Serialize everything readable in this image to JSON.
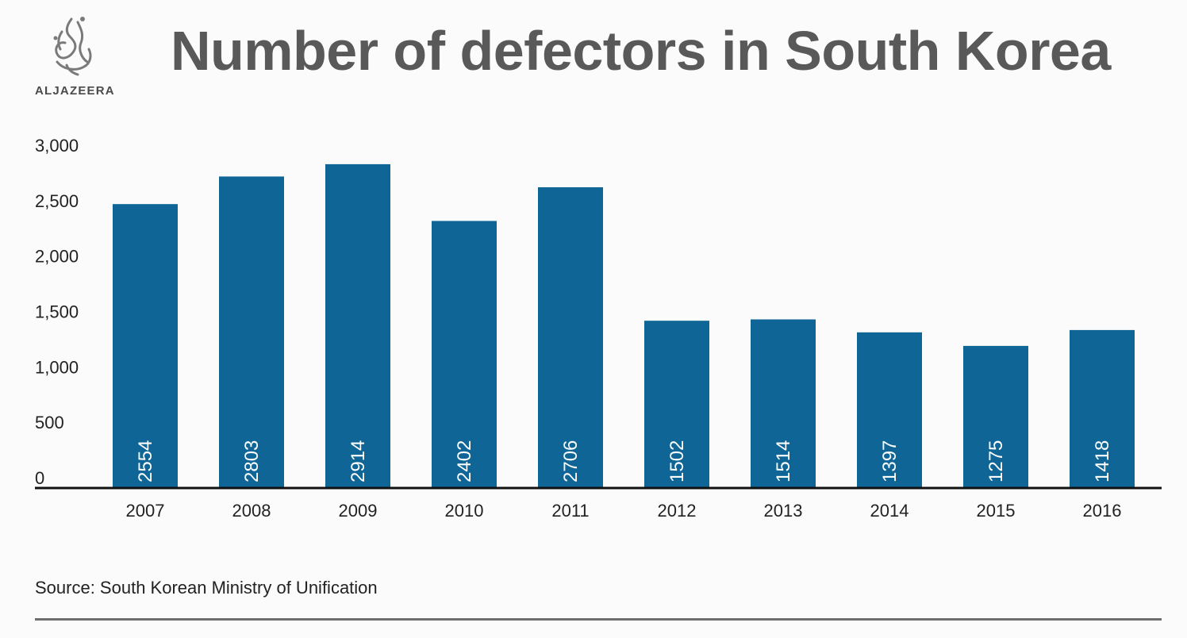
{
  "brand": {
    "logo_text": "ALJAZEERA"
  },
  "source": "Source: South Korean Ministry of Unification",
  "colors": {
    "bar": "#0f6696",
    "bar_label": "#ffffff",
    "axis": "#111111",
    "title": "#595959",
    "background": "#fbfbfb"
  },
  "chart_data": {
    "type": "bar",
    "title": "Number of defectors in South Korea",
    "xlabel": "",
    "ylabel": "",
    "categories": [
      "2007",
      "2008",
      "2009",
      "2010",
      "2011",
      "2012",
      "2013",
      "2014",
      "2015",
      "2016"
    ],
    "series": [
      {
        "values": [
          2554,
          2803,
          2914,
          2402,
          2706,
          1502,
          1514,
          1397,
          1275,
          1418
        ]
      }
    ],
    "data_labels": [
      "2554",
      "2803",
      "2914",
      "2402",
      "2706",
      "1502",
      "1514",
      "1397",
      "1275",
      "1418"
    ],
    "ylim": [
      0,
      3000
    ],
    "yticks": [
      0,
      500,
      1000,
      1500,
      2000,
      2500,
      3000
    ],
    "ytick_labels": [
      "0",
      "500",
      "1,000",
      "1,500",
      "2,000",
      "2,500",
      "3,000"
    ],
    "grid": false,
    "legend": "none"
  }
}
